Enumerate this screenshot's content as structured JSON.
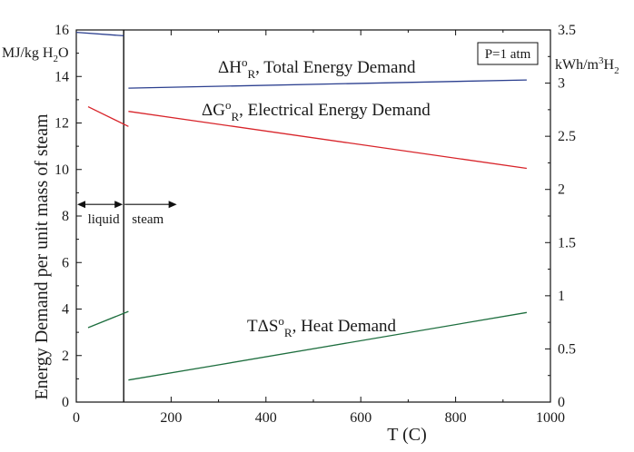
{
  "chart_data": {
    "type": "line",
    "title": "",
    "xlabel": "T (C)",
    "ylabel": "Energy Demand per unit mass of steam",
    "ylabel_left_unit": "MJ/kg H₂O",
    "ylabel_right_unit": "kWh/m³H₂",
    "xlim": [
      0,
      1000
    ],
    "ylim": [
      0,
      16
    ],
    "ylim_right": [
      0,
      3.5
    ],
    "x_ticks": [
      0,
      200,
      400,
      600,
      800,
      1000
    ],
    "y_ticks": [
      0,
      2,
      4,
      6,
      8,
      10,
      12,
      14,
      16
    ],
    "y_right_ticks": [
      "0",
      "0.5",
      "1",
      "1.5",
      "2",
      "2.5",
      "3",
      "3.5"
    ],
    "grid": false,
    "phase_boundary_x": 100,
    "phase_labels": {
      "liquid": "liquid",
      "steam": "steam",
      "arrow_y": 8.5
    },
    "pressure_label": "P=1 atm",
    "series": [
      {
        "name": "ΔH°R, Total Energy Demand",
        "color": "#2b3f8f",
        "segments": [
          [
            [
              0,
              15.9
            ],
            [
              100,
              15.75
            ]
          ],
          [
            [
              110,
              13.5
            ],
            [
              950,
              13.85
            ]
          ]
        ]
      },
      {
        "name": "ΔG°R, Electrical Energy Demand",
        "color": "#d8242a",
        "segments": [
          [
            [
              25,
              12.7
            ],
            [
              110,
              11.85
            ]
          ],
          [
            [
              110,
              12.5
            ],
            [
              950,
              10.05
            ]
          ]
        ]
      },
      {
        "name": "TΔS°R, Heat Demand",
        "color": "#1d6e3e",
        "segments": [
          [
            [
              25,
              3.2
            ],
            [
              110,
              3.9
            ]
          ],
          [
            [
              110,
              0.95
            ],
            [
              300,
              1.6
            ],
            [
              950,
              3.85
            ]
          ]
        ]
      }
    ]
  }
}
